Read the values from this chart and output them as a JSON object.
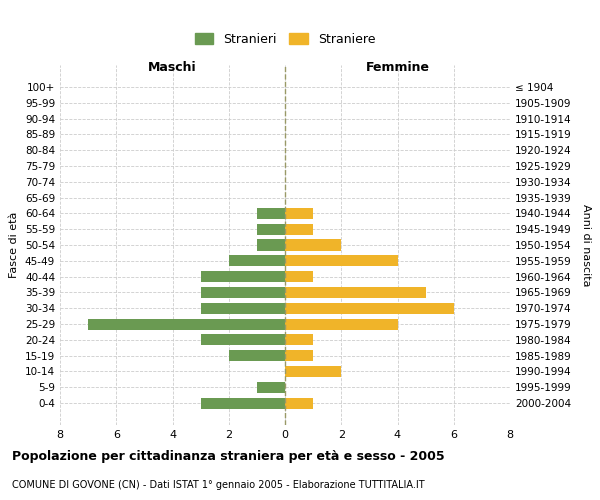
{
  "age_groups": [
    "100+",
    "95-99",
    "90-94",
    "85-89",
    "80-84",
    "75-79",
    "70-74",
    "65-69",
    "60-64",
    "55-59",
    "50-54",
    "45-49",
    "40-44",
    "35-39",
    "30-34",
    "25-29",
    "20-24",
    "15-19",
    "10-14",
    "5-9",
    "0-4"
  ],
  "birth_years": [
    "≤ 1904",
    "1905-1909",
    "1910-1914",
    "1915-1919",
    "1920-1924",
    "1925-1929",
    "1930-1934",
    "1935-1939",
    "1940-1944",
    "1945-1949",
    "1950-1954",
    "1955-1959",
    "1960-1964",
    "1965-1969",
    "1970-1974",
    "1975-1979",
    "1980-1984",
    "1985-1989",
    "1990-1994",
    "1995-1999",
    "2000-2004"
  ],
  "maschi": [
    0,
    0,
    0,
    0,
    0,
    0,
    0,
    0,
    1,
    1,
    1,
    2,
    3,
    3,
    3,
    7,
    3,
    2,
    0,
    1,
    3
  ],
  "femmine": [
    0,
    0,
    0,
    0,
    0,
    0,
    0,
    0,
    1,
    1,
    2,
    4,
    1,
    5,
    6,
    4,
    1,
    1,
    2,
    0,
    1
  ],
  "color_maschi": "#6a9a52",
  "color_femmine": "#f0b429",
  "title": "Popolazione per cittadinanza straniera per età e sesso - 2005",
  "subtitle": "COMUNE DI GOVONE (CN) - Dati ISTAT 1° gennaio 2005 - Elaborazione TUTTITALIA.IT",
  "xlabel_left": "Maschi",
  "xlabel_right": "Femmine",
  "ylabel_left": "Fasce di età",
  "ylabel_right": "Anni di nascita",
  "legend_maschi": "Stranieri",
  "legend_femmine": "Straniere",
  "xlim": 8,
  "background_color": "#ffffff",
  "grid_color": "#cccccc"
}
